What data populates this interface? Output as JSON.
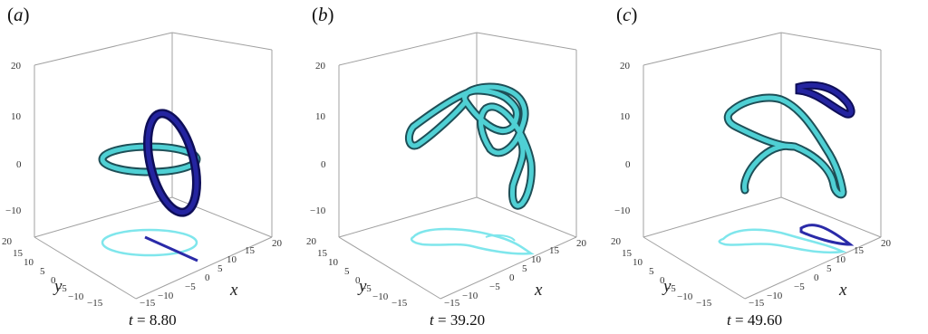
{
  "figure": {
    "panels": [
      {
        "id": "a",
        "label": "a",
        "time_label": "t",
        "time_value": "= 8.80"
      },
      {
        "id": "b",
        "label": "b",
        "time_label": "t",
        "time_value": "= 39.20"
      },
      {
        "id": "c",
        "label": "c",
        "time_label": "t",
        "time_value": "= 49.60"
      }
    ],
    "z_ticks": [
      "20",
      "10",
      "0",
      "−10"
    ],
    "y_ticks": [
      "20",
      "15",
      "10",
      "5",
      "0",
      "−5",
      "−10",
      "−15"
    ],
    "x_ticks": [
      "−15",
      "−10",
      "−5",
      "0",
      "5",
      "10",
      "15",
      "20"
    ],
    "x_axis_label": "x",
    "y_axis_label": "y"
  },
  "colors": {
    "axis": "#9a9a9a",
    "tube_light": "#4fd0d4",
    "tube_dark": "#1e4f57",
    "tube_blue": "#1a1a80",
    "projection_cyan": "#7fe6ec",
    "projection_blue": "#2a2aa8"
  }
}
